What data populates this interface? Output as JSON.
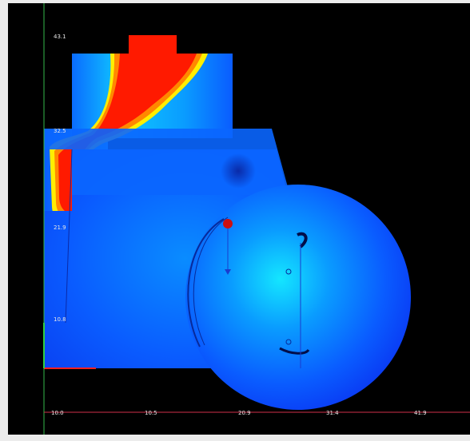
{
  "plot": {
    "y_labels": [
      "43.1",
      "32.5",
      "21.9",
      "10.8"
    ],
    "x_labels": [
      "10.0",
      "10.5",
      "20.9",
      "31.4",
      "41.9"
    ],
    "colors": {
      "background": "#000000",
      "x_axis": "#d0304a",
      "y_axis": "#34b84a",
      "field_low": "#0a3cff",
      "field_mid": "#00e5ff",
      "field_high": "#ff1a00",
      "marker": "#cc1010"
    },
    "scale": "field magnitude color map (blue low → red high)"
  }
}
